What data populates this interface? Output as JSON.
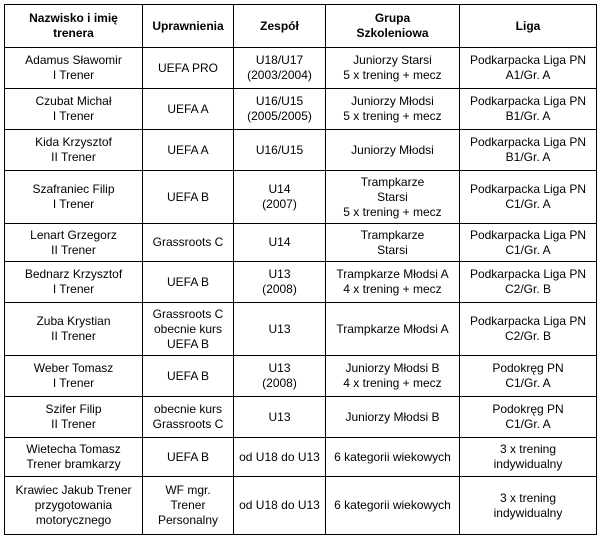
{
  "table": {
    "headers": [
      "Nazwisko i imię\ntrenera",
      "Uprawnienia",
      "Zespół",
      "Grupa\nSzkoleniowa",
      "Liga"
    ],
    "rows": [
      [
        "Adamus Sławomir\nI Trener",
        "UEFA PRO",
        "U18/U17\n(2003/2004)",
        "Juniorzy Starsi\n5 x trening + mecz",
        "Podkarpacka Liga PN\nA1/Gr. A"
      ],
      [
        "Czubat Michał\nI Trener",
        "UEFA A",
        "U16/U15\n(2005/2005)",
        "Juniorzy Młodsi\n5 x trening + mecz",
        "Podkarpacka Liga PN\nB1/Gr. A"
      ],
      [
        "Kida Krzysztof\nII Trener",
        "UEFA A",
        "U16/U15",
        "Juniorzy Młodsi",
        "Podkarpacka Liga PN\nB1/Gr. A"
      ],
      [
        "Szafraniec Filip\nI Trener",
        "UEFA B",
        "U14\n(2007)",
        "Trampkarze\nStarsi\n5 x trening + mecz",
        "Podkarpacka Liga PN\nC1/Gr. A"
      ],
      [
        "Lenart Grzegorz\nII Trener",
        "Grassroots C",
        "U14",
        "Trampkarze\nStarsi",
        "Podkarpacka Liga PN\nC1/Gr. A"
      ],
      [
        "Bednarz Krzysztof\nI Trener",
        "UEFA B",
        "U13\n(2008)",
        "Trampkarze Młodsi A\n4 x trening + mecz",
        "Podkarpacka Liga PN\nC2/Gr. B"
      ],
      [
        "Zuba Krystian\nII Trener",
        "Grassroots C\nobecnie kurs\nUEFA B",
        "U13",
        "Trampkarze Młodsi A",
        "Podkarpacka Liga PN\nC2/Gr. B"
      ],
      [
        "Weber Tomasz\nI Trener",
        "UEFA B",
        "U13\n(2008)",
        "Juniorzy Młodsi B\n4 x trening + mecz",
        "Podokręg PN\nC1/Gr. A"
      ],
      [
        "Szifer Filip\nII Trener",
        "obecnie kurs\nGrassroots C",
        "U13",
        "Juniorzy Młodsi B",
        "Podokręg PN\nC1/Gr. A"
      ],
      [
        "Wietecha Tomasz\nTrener bramkarzy",
        "UEFA B",
        "od U18 do U13",
        "6 kategorii wiekowych",
        "3 x trening\nindywidualny"
      ],
      [
        "Krawiec Jakub Trener\nprzygotowania\nmotorycznego",
        "WF mgr.\nTrener\nPersonalny",
        "od U18 do U13",
        "6 kategorii wiekowych",
        "3 x trening\nindywidualny"
      ]
    ]
  }
}
